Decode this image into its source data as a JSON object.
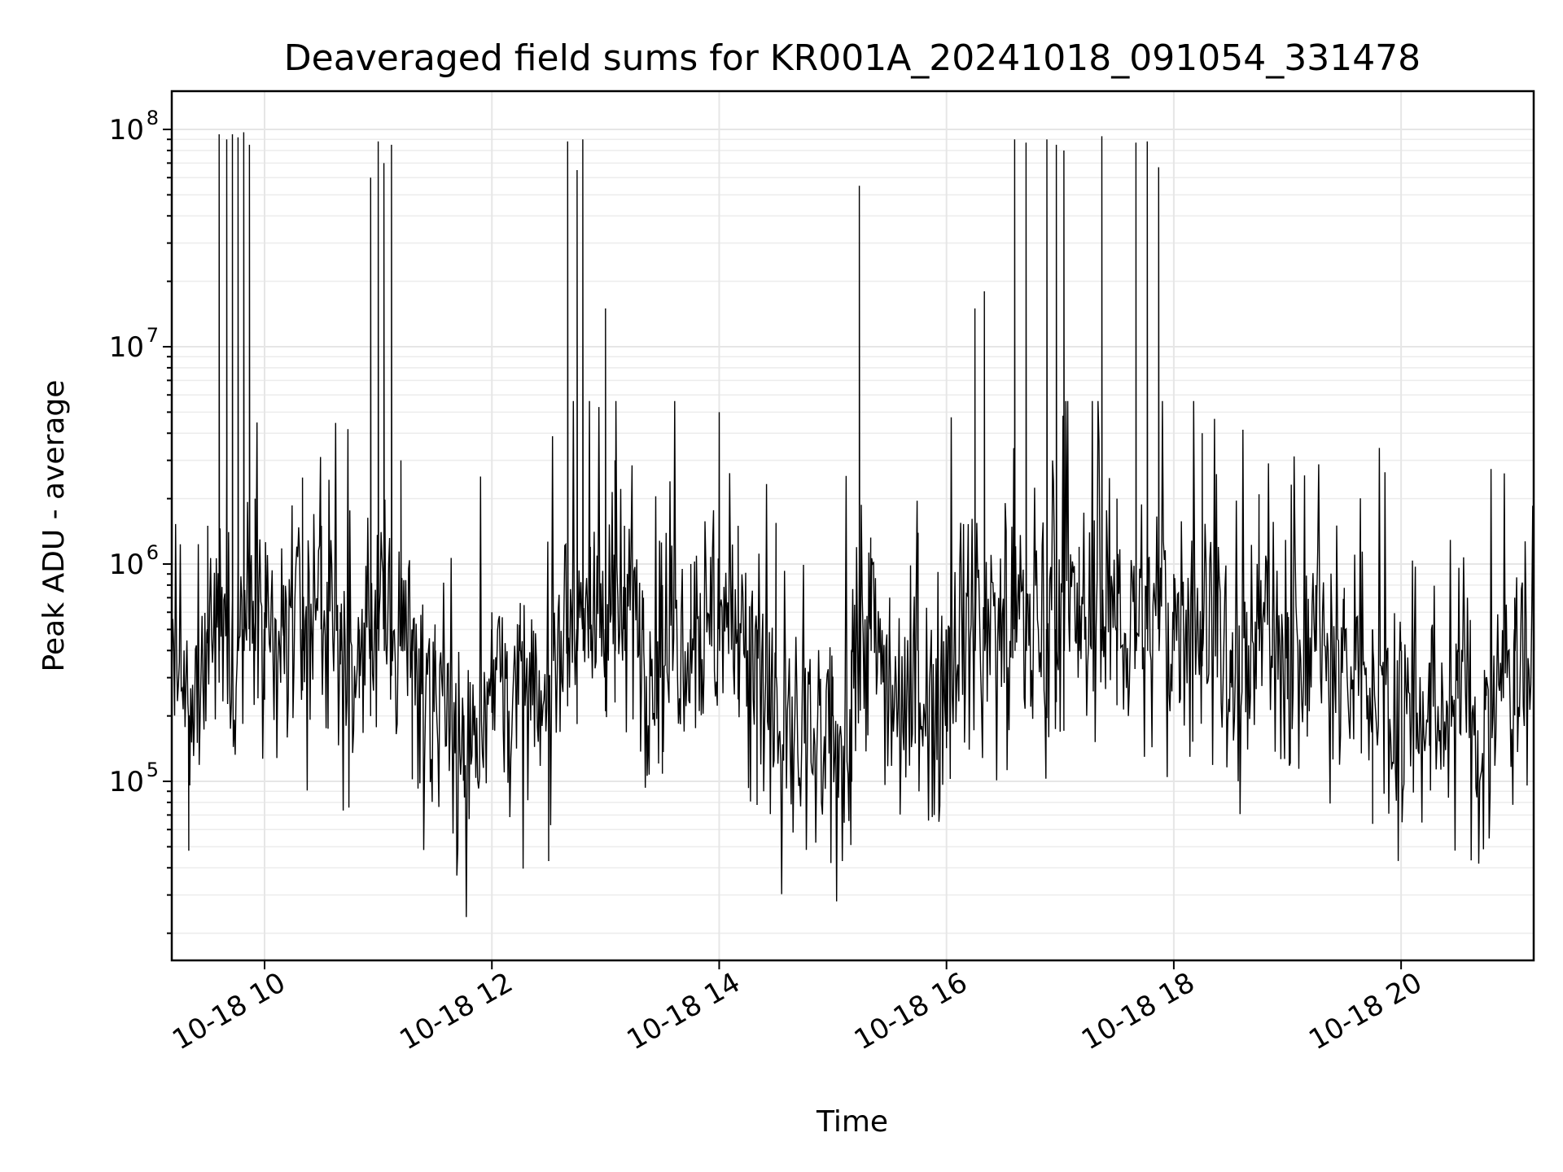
{
  "chart_data": {
    "type": "line",
    "title": "Deaveraged field sums for KR001A_20241018_091054_331478",
    "xlabel": "Time",
    "ylabel": "Peak ADU - average",
    "yscale": "log",
    "x_range": [
      "2024-10-18T09:11:00",
      "2024-10-18T21:10:00"
    ],
    "ylim": [
      15000,
      150000000
    ],
    "x_ticks": [
      "10-18 10",
      "10-18 12",
      "10-18 14",
      "10-18 16",
      "10-18 18",
      "10-18 20"
    ],
    "y_ticks": [
      {
        "base": "10",
        "exp": "5",
        "value": 100000
      },
      {
        "base": "10",
        "exp": "6",
        "value": 1000000
      },
      {
        "base": "10",
        "exp": "7",
        "value": 10000000
      },
      {
        "base": "10",
        "exp": "8",
        "value": 100000000
      }
    ],
    "grid": true,
    "line_color": "#000000",
    "series": [
      {
        "time": [
          "09:11",
          "09:20",
          "09:30",
          "09:36",
          "09:40",
          "09:43",
          "09:46",
          "09:49",
          "09:52",
          "09:55",
          "10:00",
          "10:10",
          "10:20",
          "10:30",
          "10:40",
          "10:50",
          "10:56",
          "11:00",
          "11:03",
          "11:07",
          "11:12",
          "11:18",
          "11:30",
          "11:45",
          "12:00",
          "12:15",
          "12:30",
          "12:40",
          "12:45",
          "12:48",
          "12:52",
          "13:00",
          "13:05",
          "13:10",
          "13:20",
          "13:30",
          "13:45",
          "14:00",
          "14:10",
          "14:20",
          "14:30",
          "14:45",
          "15:00",
          "15:10",
          "15:14",
          "15:20",
          "15:30",
          "15:45",
          "16:00",
          "16:15",
          "16:20",
          "16:36",
          "16:42",
          "16:53",
          "16:58",
          "17:02",
          "17:10",
          "17:22",
          "17:30",
          "17:40",
          "17:46",
          "17:52",
          "18:00",
          "18:15",
          "18:30",
          "18:45",
          "19:00",
          "19:15",
          "19:30",
          "19:45",
          "20:00",
          "20:15",
          "20:30",
          "20:45",
          "21:00",
          "21:10"
        ],
        "values": [
          1000000,
          200000,
          1500000,
          95000000,
          90000000,
          95000000,
          92000000,
          97000000,
          85000000,
          2000000,
          600000,
          800000,
          2500000,
          1500000,
          600000,
          500000,
          60000000,
          88000000,
          70000000,
          85000000,
          3000000,
          500000,
          400000,
          200000,
          600000,
          400000,
          300000,
          88000000,
          65000000,
          90000000,
          1200000,
          15000000,
          3000000,
          1500000,
          700000,
          800000,
          1000000,
          5000000,
          1500000,
          500000,
          300000,
          250000,
          200000,
          400000,
          55000000,
          1000000,
          500000,
          400000,
          500000,
          15000000,
          18000000,
          90000000,
          87000000,
          90000000,
          85000000,
          80000000,
          1200000,
          93000000,
          2000000,
          87000000,
          88000000,
          67000000,
          900000,
          4000000,
          400000,
          1500000,
          600000,
          800000,
          500000,
          500000,
          400000,
          350000,
          400000,
          300000,
          700000,
          1100000
        ]
      }
    ]
  }
}
